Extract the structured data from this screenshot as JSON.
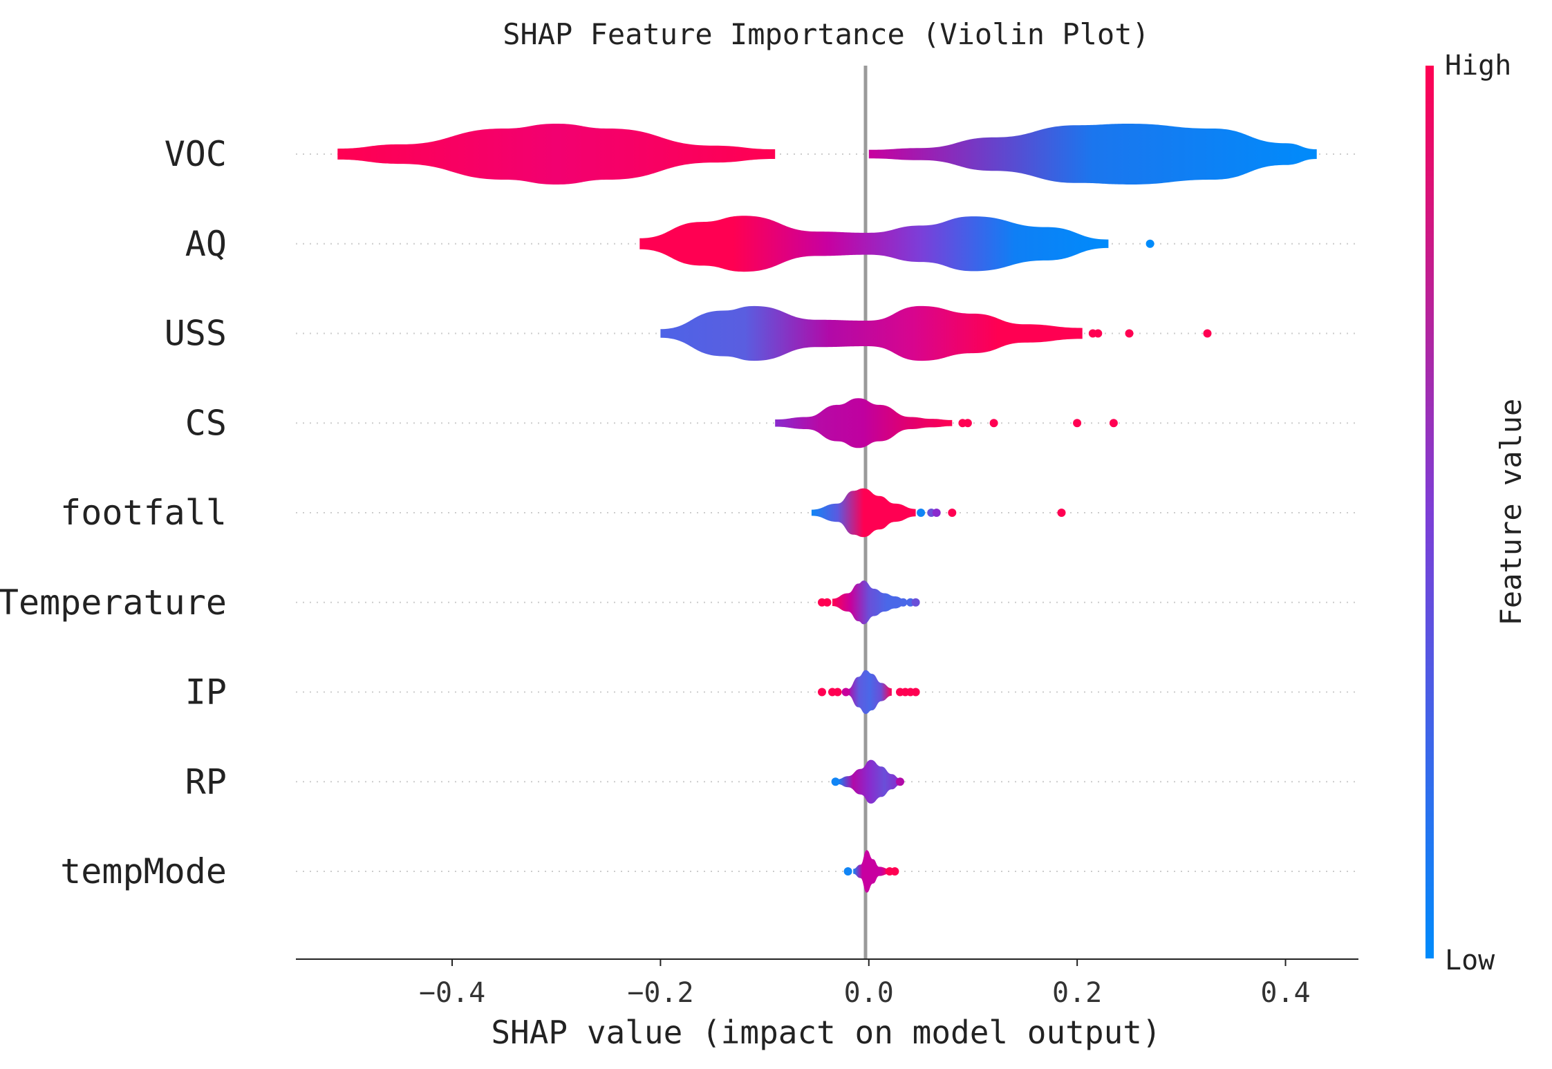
{
  "chart_data": {
    "type": "violin",
    "title": "SHAP Feature Importance (Violin Plot)",
    "xlabel": "SHAP value (impact on model output)",
    "xlim": [
      -0.55,
      0.47
    ],
    "xticks": [
      -0.4,
      -0.2,
      0.0,
      0.2,
      0.4
    ],
    "xtick_labels": [
      "−0.4",
      "−0.2",
      "0.0",
      "0.2",
      "0.4"
    ],
    "colorbar": {
      "label": "Feature value",
      "high": "High",
      "low": "Low",
      "high_color": "#ff0052",
      "low_color": "#008bfb"
    },
    "features": [
      {
        "name": "VOC",
        "bands": [
          {
            "x": [
              -0.51,
              -0.45,
              -0.35,
              -0.3,
              -0.25,
              -0.15,
              -0.09
            ],
            "w": [
              0.18,
              0.32,
              0.84,
              1.0,
              0.84,
              0.28,
              0.16
            ],
            "colors": [
              "#ff0052",
              "#f20070",
              "#ff0052"
            ]
          },
          {
            "x": [
              0.0,
              0.05,
              0.12,
              0.2,
              0.25,
              0.33,
              0.4,
              0.43
            ],
            "w": [
              0.14,
              0.2,
              0.55,
              0.95,
              1.0,
              0.84,
              0.36,
              0.16
            ],
            "colors": [
              "#c8009e",
              "#1b76ee",
              "#008bfb"
            ]
          }
        ],
        "points": []
      },
      {
        "name": "AQ",
        "bands": [
          {
            "x": [
              -0.22,
              -0.16,
              -0.12,
              -0.05,
              0.0,
              0.05,
              0.1,
              0.17,
              0.23
            ],
            "w": [
              0.18,
              0.72,
              0.92,
              0.4,
              0.36,
              0.6,
              0.9,
              0.55,
              0.14
            ],
            "colors": [
              "#ff0052",
              "#ff0052",
              "#c800a0",
              "#7b3fd9",
              "#0f7ff5",
              "#008bfb"
            ]
          }
        ],
        "points": [
          {
            "x": 0.27,
            "c": "#008bfb"
          }
        ]
      },
      {
        "name": "USS",
        "bands": [
          {
            "x": [
              -0.2,
              -0.14,
              -0.11,
              -0.05,
              0.0,
              0.05,
              0.1,
              0.15,
              0.205
            ],
            "w": [
              0.14,
              0.75,
              0.9,
              0.45,
              0.42,
              0.9,
              0.65,
              0.3,
              0.18
            ],
            "colors": [
              "#4e63e7",
              "#5a5ee0",
              "#b10aa8",
              "#d8058e",
              "#ff0052",
              "#ff0052"
            ]
          }
        ],
        "points": [
          {
            "x": 0.215,
            "c": "#ff0052"
          },
          {
            "x": 0.22,
            "c": "#ff0052"
          },
          {
            "x": 0.25,
            "c": "#ff0052"
          },
          {
            "x": 0.325,
            "c": "#ff0052"
          }
        ]
      },
      {
        "name": "CS",
        "bands": [
          {
            "x": [
              -0.09,
              -0.06,
              -0.03,
              -0.01,
              0.01,
              0.04,
              0.06,
              0.08
            ],
            "w": [
              0.12,
              0.2,
              0.6,
              0.82,
              0.6,
              0.2,
              0.14,
              0.1
            ],
            "colors": [
              "#8a2acd",
              "#b70aa6",
              "#c0009f",
              "#e00070",
              "#ff0052"
            ]
          }
        ],
        "points": [
          {
            "x": 0.09,
            "c": "#ff0052"
          },
          {
            "x": 0.095,
            "c": "#ff0052"
          },
          {
            "x": 0.12,
            "c": "#ff0052"
          },
          {
            "x": 0.2,
            "c": "#ff0052"
          },
          {
            "x": 0.235,
            "c": "#ff0052"
          }
        ]
      },
      {
        "name": "footfall",
        "bands": [
          {
            "x": [
              -0.055,
              -0.03,
              -0.015,
              -0.005,
              0.01,
              0.025,
              0.045
            ],
            "w": [
              0.1,
              0.3,
              0.72,
              0.8,
              0.55,
              0.3,
              0.12
            ],
            "colors": [
              "#1185f5",
              "#5b5ae0",
              "#ff0052",
              "#ff0052",
              "#ff0052"
            ]
          }
        ],
        "points": [
          {
            "x": 0.05,
            "c": "#1185f5"
          },
          {
            "x": 0.06,
            "c": "#6a4fd8"
          },
          {
            "x": 0.065,
            "c": "#8a2acd"
          },
          {
            "x": 0.08,
            "c": "#ff0052"
          },
          {
            "x": 0.185,
            "c": "#ff0052"
          }
        ]
      },
      {
        "name": "Temperature",
        "bands": [
          {
            "x": [
              -0.035,
              -0.02,
              -0.01,
              -0.005,
              0.005,
              0.015,
              0.025,
              0.035
            ],
            "w": [
              0.12,
              0.3,
              0.62,
              0.72,
              0.45,
              0.3,
              0.2,
              0.1
            ],
            "colors": [
              "#ff0052",
              "#c8009c",
              "#6a4fd8",
              "#4a68e8",
              "#4a68e8"
            ]
          }
        ],
        "points": [
          {
            "x": -0.045,
            "c": "#ff0052"
          },
          {
            "x": -0.04,
            "c": "#ff0052"
          },
          {
            "x": 0.033,
            "c": "#4a68e8"
          },
          {
            "x": 0.04,
            "c": "#4a68e8"
          },
          {
            "x": 0.045,
            "c": "#6a4fd8"
          }
        ]
      },
      {
        "name": "IP",
        "bands": [
          {
            "x": [
              -0.02,
              -0.01,
              -0.003,
              0.003,
              0.012,
              0.022
            ],
            "w": [
              0.1,
              0.5,
              0.72,
              0.6,
              0.3,
              0.12
            ],
            "colors": [
              "#b10aa8",
              "#5e5be0",
              "#4a68e8",
              "#6a4fd8",
              "#ff0052"
            ]
          }
        ],
        "points": [
          {
            "x": -0.045,
            "c": "#ff0052"
          },
          {
            "x": -0.035,
            "c": "#ff0052"
          },
          {
            "x": -0.03,
            "c": "#ff0052"
          },
          {
            "x": -0.022,
            "c": "#c8009c"
          },
          {
            "x": 0.03,
            "c": "#ff0052"
          },
          {
            "x": 0.035,
            "c": "#ff0052"
          },
          {
            "x": 0.04,
            "c": "#ff0052"
          },
          {
            "x": 0.045,
            "c": "#ff0052"
          }
        ]
      },
      {
        "name": "RP",
        "bands": [
          {
            "x": [
              -0.03,
              -0.02,
              -0.008,
              0.002,
              0.012,
              0.022,
              0.03
            ],
            "w": [
              0.08,
              0.18,
              0.42,
              0.72,
              0.5,
              0.25,
              0.1
            ],
            "colors": [
              "#1185f5",
              "#b10aa8",
              "#8a2acd",
              "#6a4fd8",
              "#8a2acd"
            ]
          }
        ],
        "points": [
          {
            "x": -0.032,
            "c": "#1185f5"
          },
          {
            "x": 0.03,
            "c": "#b10aa8"
          }
        ]
      },
      {
        "name": "tempMode",
        "bands": [
          {
            "x": [
              -0.015,
              -0.008,
              -0.002,
              0.004,
              0.01,
              0.02
            ],
            "w": [
              0.08,
              0.22,
              0.7,
              0.4,
              0.15,
              0.08
            ],
            "colors": [
              "#1185f5",
              "#c800a0",
              "#c800a0",
              "#c800a0",
              "#ff0052"
            ]
          }
        ],
        "points": [
          {
            "x": -0.02,
            "c": "#1185f5"
          },
          {
            "x": 0.02,
            "c": "#ff0052"
          },
          {
            "x": 0.025,
            "c": "#ff0052"
          }
        ]
      }
    ]
  }
}
